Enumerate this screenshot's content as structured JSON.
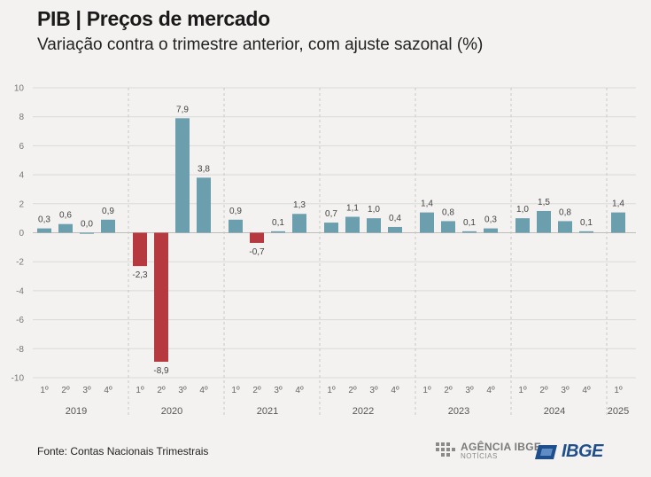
{
  "header": {
    "title": "PIB | Preços de mercado",
    "subtitle": "Variação contra o trimestre anterior, com ajuste sazonal (%)"
  },
  "footer": {
    "source": "Fonte: Contas Nacionais Trimestrais",
    "agencia_logo_text": "AGÊNCIA IBGE",
    "agencia_logo_sub": "NOTÍCIAS",
    "ibge_logo_text": "IBGE"
  },
  "colors": {
    "positive": "#6b9fae",
    "negative": "#b5393f",
    "grid": "#d9d9d6",
    "separator": "#c8c8c5",
    "background": "#f3f2f0"
  },
  "chart_data": {
    "type": "bar",
    "ylim": [
      -10,
      10
    ],
    "yticks": [
      10,
      8,
      6,
      4,
      2,
      0,
      -2,
      -4,
      -6,
      -8,
      -10
    ],
    "grid": true,
    "groups": [
      {
        "year": "2019",
        "quarters": [
          "1º",
          "2º",
          "3º",
          "4º"
        ],
        "values": [
          0.3,
          0.6,
          0.0,
          0.9
        ],
        "labels": [
          "0,3",
          "0,6",
          "0,0",
          "0,9"
        ]
      },
      {
        "year": "2020",
        "quarters": [
          "1º",
          "2º",
          "3º",
          "4º"
        ],
        "values": [
          -2.3,
          -8.9,
          7.9,
          3.8
        ],
        "labels": [
          "-2,3",
          "-8,9",
          "7,9",
          "3,8"
        ]
      },
      {
        "year": "2021",
        "quarters": [
          "1º",
          "2º",
          "3º",
          "4º"
        ],
        "values": [
          0.9,
          -0.7,
          0.1,
          1.3
        ],
        "labels": [
          "0,9",
          "-0,7",
          "0,1",
          "1,3"
        ]
      },
      {
        "year": "2022",
        "quarters": [
          "1º",
          "2º",
          "3º",
          "4º"
        ],
        "values": [
          0.7,
          1.1,
          1.0,
          0.4
        ],
        "labels": [
          "0,7",
          "1,1",
          "1,0",
          "0,4"
        ]
      },
      {
        "year": "2023",
        "quarters": [
          "1º",
          "2º",
          "3º",
          "4º"
        ],
        "values": [
          1.4,
          0.8,
          0.1,
          0.3
        ],
        "labels": [
          "1,4",
          "0,8",
          "0,1",
          "0,3"
        ]
      },
      {
        "year": "2024",
        "quarters": [
          "1º",
          "2º",
          "3º",
          "4º"
        ],
        "values": [
          1.0,
          1.5,
          0.8,
          0.1
        ],
        "labels": [
          "1,0",
          "1,5",
          "0,8",
          "0,1"
        ]
      },
      {
        "year": "2025",
        "quarters": [
          "1º"
        ],
        "values": [
          1.4
        ],
        "labels": [
          "1,4"
        ]
      }
    ]
  }
}
